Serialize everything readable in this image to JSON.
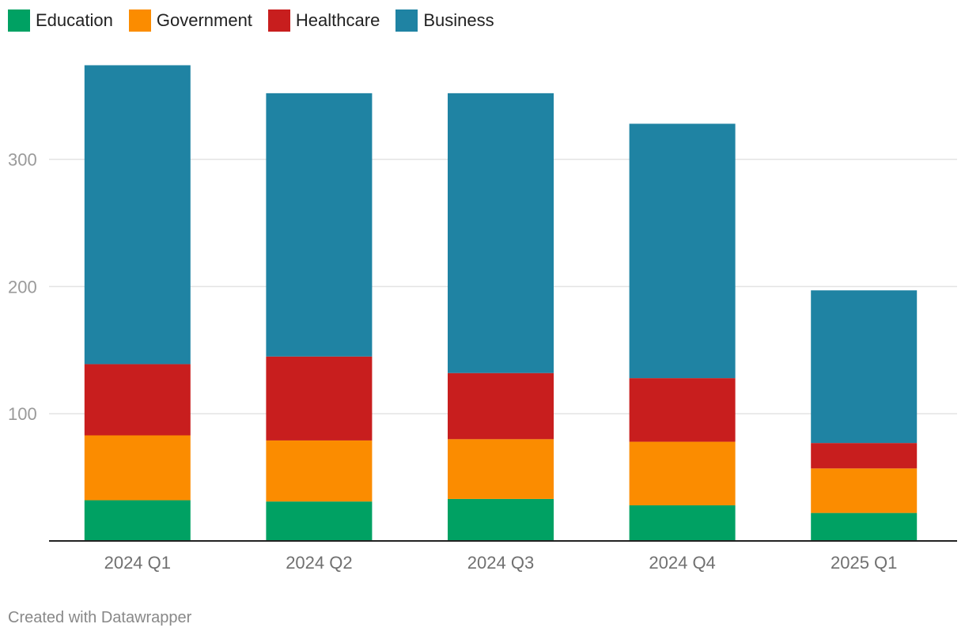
{
  "chart_data": {
    "type": "bar",
    "stacked": true,
    "categories": [
      "2024 Q1",
      "2024 Q2",
      "2024 Q3",
      "2024 Q4",
      "2025 Q1"
    ],
    "series": [
      {
        "name": "Education",
        "color": "#00a163",
        "values": [
          32,
          31,
          33,
          28,
          22
        ]
      },
      {
        "name": "Government",
        "color": "#fb8c00",
        "values": [
          51,
          48,
          47,
          50,
          35
        ]
      },
      {
        "name": "Healthcare",
        "color": "#c81e1e",
        "values": [
          56,
          66,
          52,
          50,
          20
        ]
      },
      {
        "name": "Business",
        "color": "#1f83a3",
        "values": [
          235,
          207,
          220,
          200,
          120
        ]
      }
    ],
    "yticks": [
      100,
      200,
      300
    ],
    "ylim": [
      0,
      376
    ],
    "grid": true,
    "legend_position": "top-left",
    "title": "",
    "xlabel": "",
    "ylabel": ""
  },
  "credit": "Created with Datawrapper"
}
